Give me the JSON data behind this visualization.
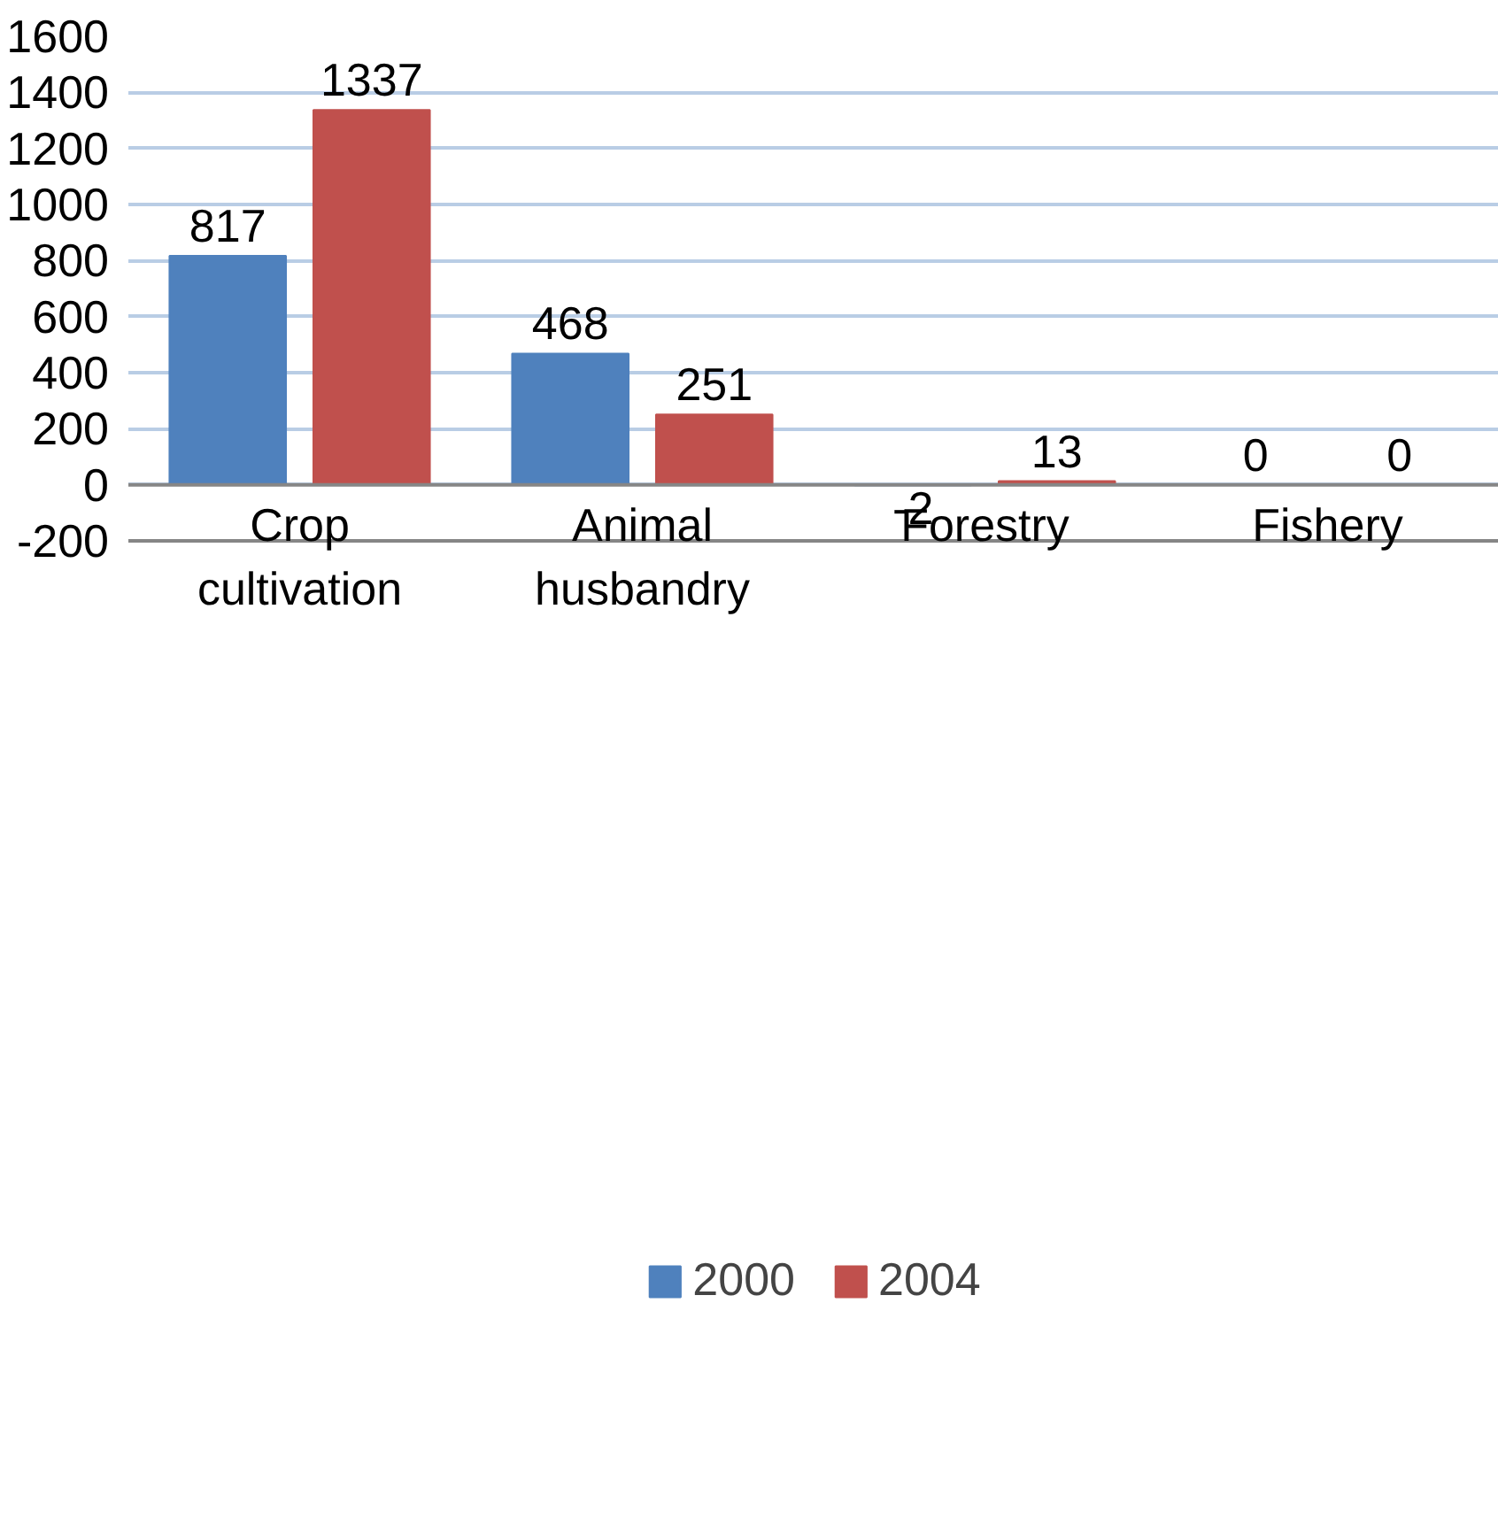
{
  "chart_data": {
    "type": "bar",
    "categories": [
      "Crop cultivation",
      "Animal husbandry",
      "Forestry",
      "Fishery"
    ],
    "series": [
      {
        "name": "2000",
        "color": "#4f81bd",
        "values": [
          817,
          468,
          -2,
          0
        ]
      },
      {
        "name": "2004",
        "color": "#c0504d",
        "values": [
          1337,
          251,
          13,
          0
        ]
      }
    ],
    "ylim": [
      -200,
      1600
    ],
    "yticks": [
      -200,
      0,
      200,
      400,
      600,
      800,
      1000,
      1200,
      1400,
      1600
    ],
    "grid": "y",
    "legend": "bottom",
    "data_labels": true
  }
}
